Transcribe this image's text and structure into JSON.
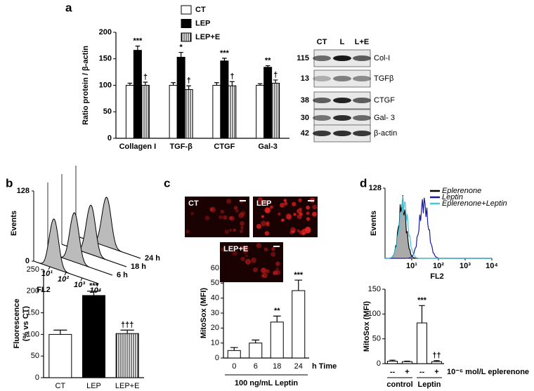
{
  "panels": [
    "a",
    "b",
    "c",
    "d"
  ],
  "blot": {
    "columns": [
      "CT",
      "L",
      "L+E"
    ],
    "rows": [
      {
        "kda": "115",
        "name": "Col-I"
      },
      {
        "kda": "13",
        "name": "TGFβ"
      },
      {
        "kda": "38",
        "name": "CTGF"
      },
      {
        "kda": "30",
        "name": "Gal- 3"
      },
      {
        "kda": "42",
        "name": "β-actin"
      }
    ]
  },
  "chart_data": [
    {
      "type": "bar",
      "y_label": "Ratio protein / β-actin",
      "categories": [
        "Collagen I",
        "TGF-β",
        "CTGF",
        "Gal-3"
      ],
      "series": [
        {
          "name": "CT",
          "color": "#ffffff",
          "values": [
            100,
            100,
            100,
            100
          ],
          "errors": [
            4,
            5,
            5,
            3
          ]
        },
        {
          "name": "LEP",
          "color": "#000000",
          "values": [
            166,
            153,
            146,
            134
          ],
          "errors": [
            8,
            9,
            5,
            3
          ],
          "annotations": [
            "***",
            "*",
            "***",
            "**"
          ]
        },
        {
          "name": "LEP+E",
          "color": "#ffffff",
          "hatch": true,
          "values": [
            100,
            92,
            99,
            104
          ],
          "errors": [
            6,
            7,
            8,
            6
          ],
          "annotations": [
            "†",
            "†",
            "†",
            "†"
          ]
        }
      ],
      "ylim": [
        0,
        200
      ],
      "yticks": [
        0,
        50,
        100,
        150,
        200
      ]
    },
    {
      "type": "flow3d",
      "y_label": "Events",
      "x_label": "FL2",
      "ylim": [
        0,
        128
      ],
      "yticks": [
        0,
        128
      ],
      "xlim": [
        1,
        10000
      ],
      "log_x": true,
      "xticks": [
        {
          "value": 10,
          "label": "10¹"
        },
        {
          "value": 100,
          "label": "10²"
        },
        {
          "value": 1000,
          "label": "10³"
        },
        {
          "value": 10000,
          "label": "10⁴"
        }
      ],
      "offsets": [
        "6 h",
        "18 h",
        "24 h"
      ]
    },
    {
      "type": "bar",
      "y_label": [
        "Fluorescence",
        "(% vs CT)"
      ],
      "categories": [
        "CT",
        "LEP",
        "LEP+E"
      ],
      "values": [
        100,
        190,
        102
      ],
      "errors": [
        10,
        10,
        8
      ],
      "colors": [
        "#ffffff",
        "#000000",
        "#ffffff"
      ],
      "hatch": [
        false,
        false,
        true
      ],
      "annotations": [
        null,
        "***",
        "†††"
      ],
      "ylim": [
        0,
        250
      ],
      "yticks": [
        0,
        50,
        100,
        150,
        200,
        250
      ]
    },
    {
      "type": "bar",
      "images": [
        "CT",
        "LEP",
        "LEP+E"
      ],
      "y_label": "MitoSox (MFI)",
      "categories": [
        "0",
        "6",
        "18",
        "24"
      ],
      "x_label": "h Time",
      "group_label": "100 ng/mL Leptin",
      "values": [
        5,
        10,
        24,
        45
      ],
      "errors": [
        2,
        2,
        4,
        7
      ],
      "color": "#ffffff",
      "annotations": [
        null,
        null,
        "**",
        "***"
      ],
      "ylim": [
        0,
        60
      ],
      "yticks": [
        0,
        10,
        20,
        30,
        40,
        50,
        60
      ]
    },
    {
      "type": "flow",
      "y_label": "Events",
      "x_label": "FL2",
      "ylim": [
        0,
        128
      ],
      "yticks": [
        128
      ],
      "xlim": [
        1,
        10000
      ],
      "log_x": true,
      "xticks": [
        {
          "value": 10,
          "label": "10¹"
        },
        {
          "value": 100,
          "label": "10²"
        },
        {
          "value": 1000,
          "label": "10³"
        },
        {
          "value": 10000,
          "label": "10⁴"
        }
      ],
      "series": [
        {
          "name": "Eplerenone",
          "color": "#000000"
        },
        {
          "name": "Leptin",
          "color": "#1a1a9c"
        },
        {
          "name": "Eplerenone+Leptin",
          "color": "#40c8e0"
        }
      ]
    },
    {
      "type": "bar",
      "y_label": "MitoSox (MFI)",
      "categories": [
        "--",
        "+",
        "--",
        "+"
      ],
      "groups": [
        "control",
        "Leptin"
      ],
      "x_label": "10⁻⁶ mol/L eplerenone",
      "values": [
        5,
        4,
        82,
        4
      ],
      "errors": [
        2,
        1,
        35,
        2
      ],
      "color": "#ffffff",
      "annotations": [
        null,
        null,
        "***",
        "††"
      ],
      "ylim": [
        0,
        150
      ],
      "yticks": [
        0,
        50,
        100,
        150
      ]
    }
  ]
}
